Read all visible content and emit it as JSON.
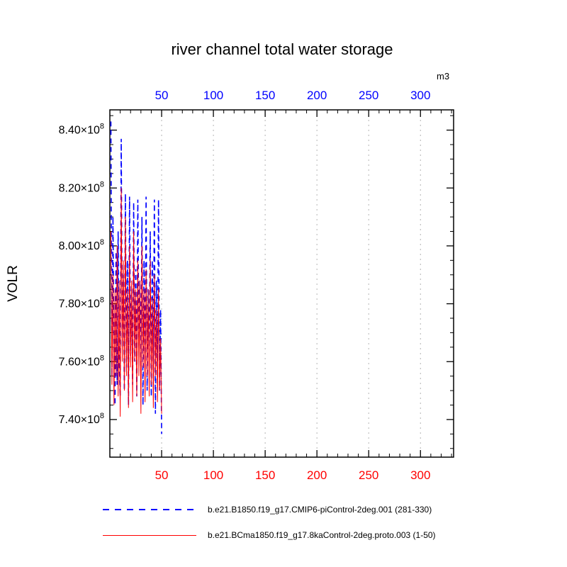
{
  "chart_data": {
    "type": "line",
    "title": "river channel total water storage",
    "ylabel": "VOLR",
    "top_axis_unit_label": "m3",
    "xlim": [
      0,
      332
    ],
    "ylim": [
      727000000.0,
      847000000.0
    ],
    "x_ticks": [
      50,
      100,
      150,
      200,
      250,
      300
    ],
    "x_minor_step": 10,
    "y_ticks": [
      740000000.0,
      760000000.0,
      780000000.0,
      800000000.0,
      820000000.0,
      840000000.0
    ],
    "y_minor_step": 5000000.0,
    "grid": "vertical-dashed",
    "legend_position": "bottom",
    "colors": {
      "grid": "#b4b4b4",
      "axis": "#000000",
      "top_axis_labels": "#0000ff",
      "bottom_axis_labels": "#ff0000"
    },
    "x": [
      1,
      2,
      3,
      4,
      5,
      6,
      7,
      8,
      9,
      10,
      11,
      12,
      13,
      14,
      15,
      16,
      17,
      18,
      19,
      20,
      21,
      22,
      23,
      24,
      25,
      26,
      27,
      28,
      29,
      30,
      31,
      32,
      33,
      34,
      35,
      36,
      37,
      38,
      39,
      40,
      41,
      42,
      43,
      44,
      45,
      46,
      47,
      48,
      49,
      50
    ],
    "series": [
      {
        "name": "b.e21.B1850.f19_g17.CMIP6-piControl-2deg.001 (281-330)",
        "color": "#0000ff",
        "style": "dashed",
        "values": [
          843000000.0,
          755000000.0,
          810000000.0,
          762000000.0,
          745000000.0,
          798000000.0,
          752000000.0,
          805000000.0,
          760000000.0,
          748000000.0,
          837000000.0,
          765000000.0,
          790000000.0,
          750000000.0,
          818000000.0,
          758000000.0,
          795000000.0,
          745000000.0,
          817000000.0,
          762000000.0,
          785000000.0,
          752000000.0,
          815000000.0,
          760000000.0,
          792000000.0,
          748000000.0,
          816000000.0,
          765000000.0,
          788000000.0,
          755000000.0,
          810000000.0,
          745000000.0,
          795000000.0,
          758000000.0,
          817000000.0,
          750000000.0,
          785000000.0,
          762000000.0,
          805000000.0,
          748000000.0,
          795000000.0,
          755000000.0,
          816000000.0,
          742000000.0,
          788000000.0,
          760000000.0,
          816000000.0,
          750000000.0,
          778000000.0,
          735000000.0
        ]
      },
      {
        "name": "b.e21.BCma1850.f19_g17.8kaControl-2deg.proto.003 (1-50)",
        "color": "#ff0000",
        "style": "solid",
        "values": [
          805000000.0,
          752000000.0,
          790000000.0,
          745000000.0,
          785000000.0,
          755000000.0,
          800000000.0,
          748000000.0,
          788000000.0,
          741000000.0,
          820000000.0,
          760000000.0,
          795000000.0,
          750000000.0,
          810000000.0,
          755000000.0,
          785000000.0,
          744000000.0,
          800000000.0,
          758000000.0,
          788000000.0,
          746000000.0,
          805000000.0,
          760000000.0,
          785000000.0,
          748000000.0,
          795000000.0,
          755000000.0,
          788000000.0,
          742000000.0,
          800000000.0,
          758000000.0,
          785000000.0,
          746000000.0,
          792000000.0,
          755000000.0,
          785000000.0,
          748000000.0,
          795000000.0,
          752000000.0,
          782000000.0,
          744000000.0,
          790000000.0,
          755000000.0,
          778000000.0,
          746000000.0,
          785000000.0,
          750000000.0,
          768000000.0,
          742000000.0
        ]
      }
    ]
  }
}
